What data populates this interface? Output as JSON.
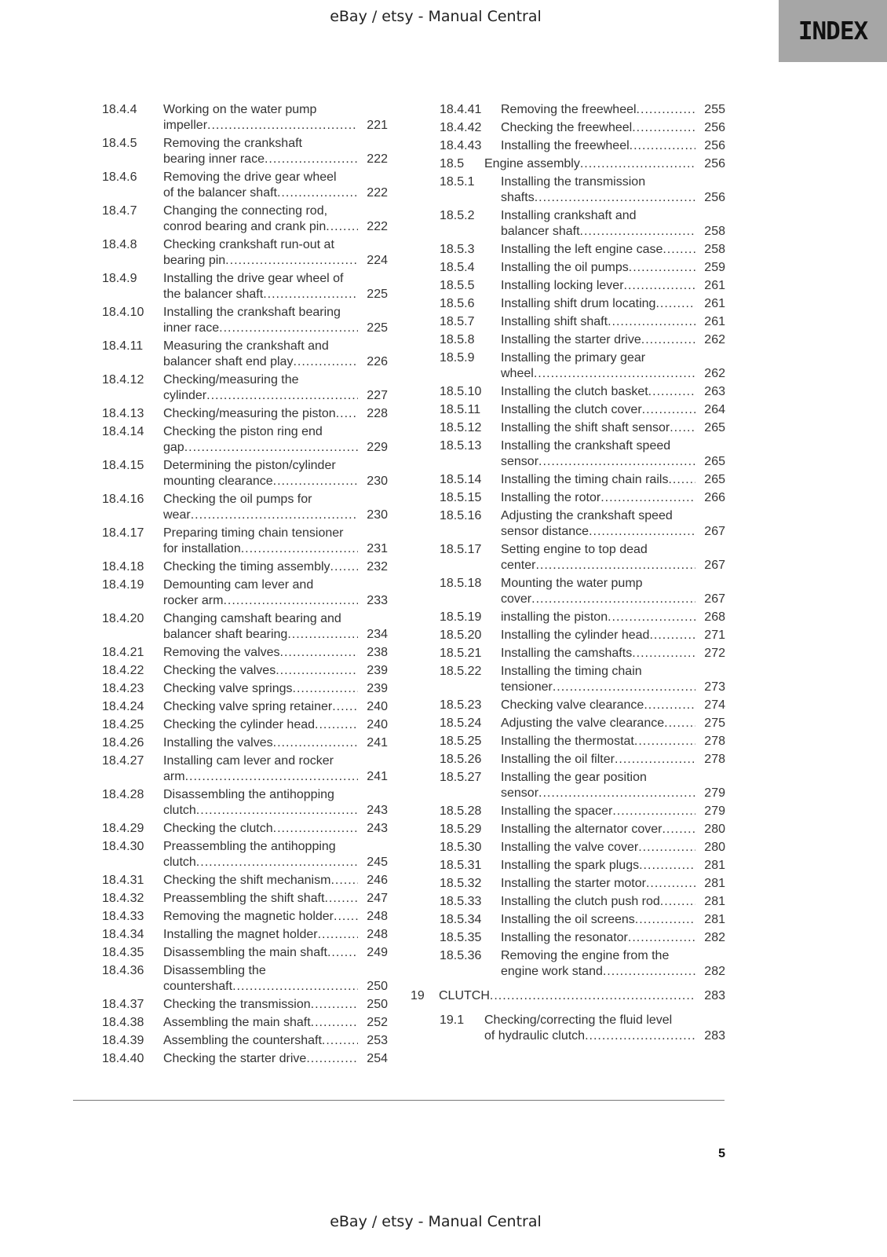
{
  "header": {
    "title": "eBay / etsy - Manual Central"
  },
  "footer": {
    "title": "eBay / etsy - Manual Central"
  },
  "section_tab": {
    "label": "INDEX"
  },
  "page_number": "5",
  "left_column": [
    {
      "num": "18.4.4",
      "lines": [
        "Working on the water pump",
        "impeller"
      ],
      "page": "221"
    },
    {
      "num": "18.4.5",
      "lines": [
        "Removing the crankshaft",
        "bearing inner race"
      ],
      "page": "222"
    },
    {
      "num": "18.4.6",
      "lines": [
        "Removing the drive gear wheel",
        "of the balancer shaft"
      ],
      "page": "222"
    },
    {
      "num": "18.4.7",
      "lines": [
        "Changing the connecting rod,",
        "conrod bearing and crank pin"
      ],
      "page": "222"
    },
    {
      "num": "18.4.8",
      "lines": [
        "Checking crankshaft run-out at",
        "bearing pin"
      ],
      "page": "224"
    },
    {
      "num": "18.4.9",
      "lines": [
        "Installing the drive gear wheel of",
        "the balancer shaft"
      ],
      "page": "225"
    },
    {
      "num": "18.4.10",
      "lines": [
        "Installing the crankshaft bearing",
        "inner race"
      ],
      "page": "225"
    },
    {
      "num": "18.4.11",
      "lines": [
        "Measuring the crankshaft and",
        "balancer shaft end play"
      ],
      "page": "226"
    },
    {
      "num": "18.4.12",
      "lines": [
        "Checking/measuring the",
        "cylinder"
      ],
      "page": "227"
    },
    {
      "num": "18.4.13",
      "lines": [
        "Checking/measuring the piston"
      ],
      "page": "228"
    },
    {
      "num": "18.4.14",
      "lines": [
        "Checking the piston ring end",
        "gap"
      ],
      "page": "229"
    },
    {
      "num": "18.4.15",
      "lines": [
        "Determining the piston/cylinder",
        "mounting clearance"
      ],
      "page": "230"
    },
    {
      "num": "18.4.16",
      "lines": [
        "Checking the oil pumps for",
        "wear"
      ],
      "page": "230"
    },
    {
      "num": "18.4.17",
      "lines": [
        "Preparing timing chain tensioner",
        "for installation"
      ],
      "page": "231"
    },
    {
      "num": "18.4.18",
      "lines": [
        "Checking the timing assembly"
      ],
      "page": "232"
    },
    {
      "num": "18.4.19",
      "lines": [
        "Demounting cam lever and",
        "rocker arm"
      ],
      "page": "233"
    },
    {
      "num": "18.4.20",
      "lines": [
        "Changing camshaft bearing and",
        "balancer shaft bearing"
      ],
      "page": "234"
    },
    {
      "num": "18.4.21",
      "lines": [
        "Removing the valves"
      ],
      "page": "238"
    },
    {
      "num": "18.4.22",
      "lines": [
        "Checking the valves"
      ],
      "page": "239"
    },
    {
      "num": "18.4.23",
      "lines": [
        "Checking valve springs"
      ],
      "page": "239"
    },
    {
      "num": "18.4.24",
      "lines": [
        "Checking valve spring retainer"
      ],
      "page": "240"
    },
    {
      "num": "18.4.25",
      "lines": [
        "Checking the cylinder head"
      ],
      "page": "240"
    },
    {
      "num": "18.4.26",
      "lines": [
        "Installing the valves"
      ],
      "page": "241"
    },
    {
      "num": "18.4.27",
      "lines": [
        "Installing cam lever and rocker",
        "arm"
      ],
      "page": "241"
    },
    {
      "num": "18.4.28",
      "lines": [
        "Disassembling the antihopping",
        "clutch"
      ],
      "page": "243"
    },
    {
      "num": "18.4.29",
      "lines": [
        "Checking the clutch"
      ],
      "page": "243"
    },
    {
      "num": "18.4.30",
      "lines": [
        "Preassembling the antihopping",
        "clutch"
      ],
      "page": "245"
    },
    {
      "num": "18.4.31",
      "lines": [
        "Checking the shift mechanism"
      ],
      "page": "246"
    },
    {
      "num": "18.4.32",
      "lines": [
        "Preassembling the shift shaft"
      ],
      "page": "247"
    },
    {
      "num": "18.4.33",
      "lines": [
        "Removing the magnetic holder"
      ],
      "page": "248"
    },
    {
      "num": "18.4.34",
      "lines": [
        "Installing the magnet holder"
      ],
      "page": "248"
    },
    {
      "num": "18.4.35",
      "lines": [
        "Disassembling the main shaft"
      ],
      "page": "249"
    },
    {
      "num": "18.4.36",
      "lines": [
        "Disassembling the",
        "countershaft"
      ],
      "page": "250"
    },
    {
      "num": "18.4.37",
      "lines": [
        "Checking the transmission"
      ],
      "page": "250"
    },
    {
      "num": "18.4.38",
      "lines": [
        "Assembling the main shaft"
      ],
      "page": "252"
    },
    {
      "num": "18.4.39",
      "lines": [
        "Assembling the countershaft"
      ],
      "page": "253"
    },
    {
      "num": "18.4.40",
      "lines": [
        "Checking the starter drive"
      ],
      "page": "254"
    }
  ],
  "right_column": [
    {
      "num": "18.4.41",
      "lines": [
        "Removing the freewheel"
      ],
      "page": "255"
    },
    {
      "num": "18.4.42",
      "lines": [
        "Checking the freewheel"
      ],
      "page": "256"
    },
    {
      "num": "18.4.43",
      "lines": [
        "Installing the freewheel"
      ],
      "page": "256"
    },
    {
      "num": "18.5",
      "level": "section",
      "lines": [
        "Engine assembly"
      ],
      "page": "256"
    },
    {
      "num": "18.5.1",
      "lines": [
        "Installing the transmission",
        "shafts"
      ],
      "page": "256"
    },
    {
      "num": "18.5.2",
      "lines": [
        "Installing crankshaft and",
        "balancer shaft"
      ],
      "page": "258"
    },
    {
      "num": "18.5.3",
      "lines": [
        "Installing the left engine case"
      ],
      "page": "258"
    },
    {
      "num": "18.5.4",
      "lines": [
        "Installing the oil pumps"
      ],
      "page": "259"
    },
    {
      "num": "18.5.5",
      "lines": [
        "Installing locking lever"
      ],
      "page": "261"
    },
    {
      "num": "18.5.6",
      "lines": [
        "Installing shift drum locating"
      ],
      "page": "261"
    },
    {
      "num": "18.5.7",
      "lines": [
        "Installing shift shaft"
      ],
      "page": "261"
    },
    {
      "num": "18.5.8",
      "lines": [
        "Installing the starter drive"
      ],
      "page": "262"
    },
    {
      "num": "18.5.9",
      "lines": [
        "Installing the primary gear",
        "wheel"
      ],
      "page": "262"
    },
    {
      "num": "18.5.10",
      "lines": [
        "Installing the clutch basket"
      ],
      "page": "263"
    },
    {
      "num": "18.5.11",
      "lines": [
        "Installing the clutch cover"
      ],
      "page": "264"
    },
    {
      "num": "18.5.12",
      "lines": [
        "Installing the shift shaft sensor"
      ],
      "page": "265"
    },
    {
      "num": "18.5.13",
      "lines": [
        "Installing the crankshaft speed",
        "sensor"
      ],
      "page": "265"
    },
    {
      "num": "18.5.14",
      "lines": [
        "Installing the timing chain rails"
      ],
      "page": "265"
    },
    {
      "num": "18.5.15",
      "lines": [
        "Installing the rotor"
      ],
      "page": "266"
    },
    {
      "num": "18.5.16",
      "lines": [
        "Adjusting the crankshaft speed",
        "sensor distance"
      ],
      "page": "267"
    },
    {
      "num": "18.5.17",
      "lines": [
        "Setting engine to top dead",
        "center"
      ],
      "page": "267"
    },
    {
      "num": "18.5.18",
      "lines": [
        "Mounting the water pump",
        "cover"
      ],
      "page": "267"
    },
    {
      "num": "18.5.19",
      "lines": [
        "installing the piston"
      ],
      "page": "268"
    },
    {
      "num": "18.5.20",
      "lines": [
        "Installing the cylinder head"
      ],
      "page": "271"
    },
    {
      "num": "18.5.21",
      "lines": [
        "Installing the camshafts"
      ],
      "page": "272"
    },
    {
      "num": "18.5.22",
      "lines": [
        "Installing the timing chain",
        "tensioner"
      ],
      "page": "273"
    },
    {
      "num": "18.5.23",
      "lines": [
        "Checking valve clearance"
      ],
      "page": "274"
    },
    {
      "num": "18.5.24",
      "lines": [
        "Adjusting the valve clearance"
      ],
      "page": "275"
    },
    {
      "num": "18.5.25",
      "lines": [
        "Installing the thermostat"
      ],
      "page": "278"
    },
    {
      "num": "18.5.26",
      "lines": [
        "Installing the oil filter"
      ],
      "page": "278"
    },
    {
      "num": "18.5.27",
      "lines": [
        "Installing the gear position",
        "sensor"
      ],
      "page": "279"
    },
    {
      "num": "18.5.28",
      "lines": [
        "Installing the spacer"
      ],
      "page": "279"
    },
    {
      "num": "18.5.29",
      "lines": [
        "Installing the alternator cover"
      ],
      "page": "280"
    },
    {
      "num": "18.5.30",
      "lines": [
        "Installing the valve cover"
      ],
      "page": "280"
    },
    {
      "num": "18.5.31",
      "lines": [
        "Installing the spark plugs"
      ],
      "page": "281"
    },
    {
      "num": "18.5.32",
      "lines": [
        "Installing the starter motor"
      ],
      "page": "281"
    },
    {
      "num": "18.5.33",
      "lines": [
        "Installing the clutch push rod"
      ],
      "page": "281"
    },
    {
      "num": "18.5.34",
      "lines": [
        "Installing the oil screens"
      ],
      "page": "281"
    },
    {
      "num": "18.5.35",
      "lines": [
        "Installing the resonator"
      ],
      "page": "282"
    },
    {
      "num": "18.5.36",
      "lines": [
        "Removing the engine from the",
        "engine work stand"
      ],
      "page": "282"
    },
    {
      "num": "19",
      "level": "chapter",
      "lines": [
        "CLUTCH"
      ],
      "page": "283"
    },
    {
      "num": "19.1",
      "level": "section",
      "lines": [
        "Checking/correcting the fluid level",
        "of hydraulic clutch"
      ],
      "page": "283"
    }
  ]
}
